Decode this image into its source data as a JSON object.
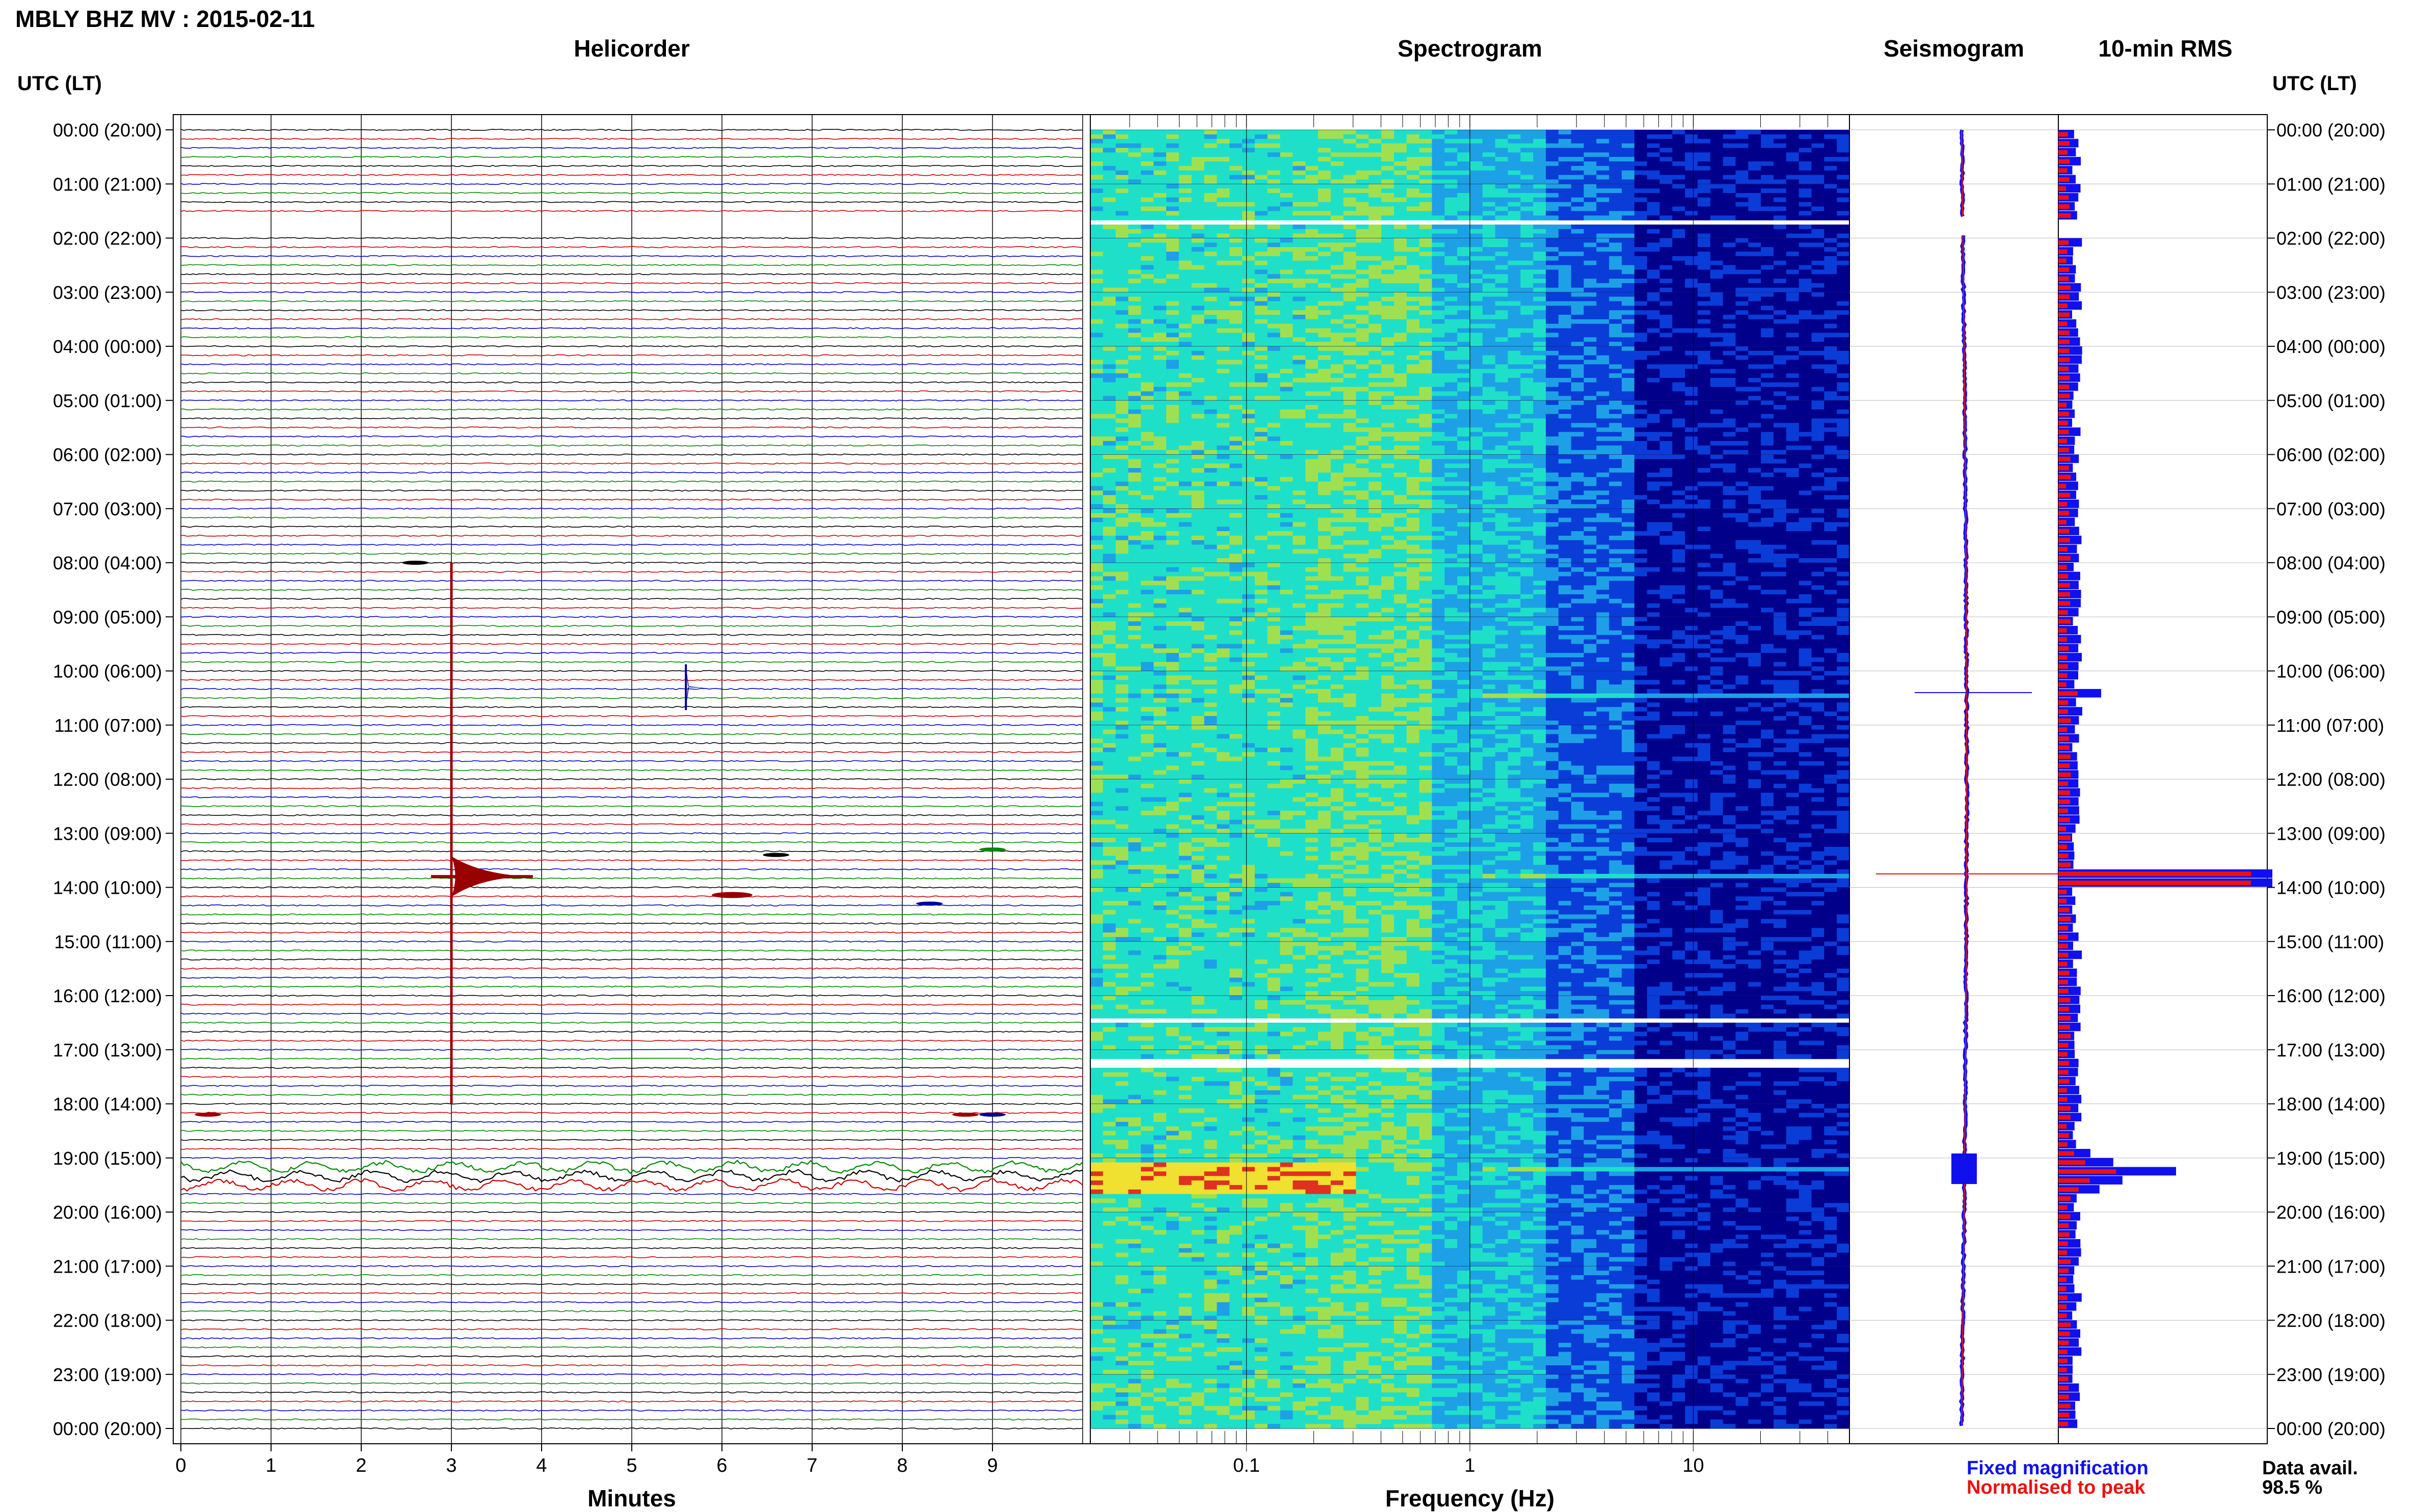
{
  "header": {
    "title": "MBLY BHZ MV : 2015-02-11"
  },
  "panels": {
    "helicorder_title": "Helicorder",
    "spectrogram_title": "Spectrogram",
    "seismogram_title": "Seismogram",
    "rms_title": "10-min RMS"
  },
  "axes": {
    "time_header_left": "UTC (LT)",
    "time_header_right": "UTC (LT)",
    "helicorder_xlabel": "Minutes",
    "spectrogram_xlabel": "Frequency (Hz)"
  },
  "legend": {
    "fixed": "Fixed magnification",
    "normalised": "Normalised to peak",
    "fixed_color": "#1010ee",
    "normalised_color": "#ee1010",
    "data_avail_label": "Data avail.",
    "data_avail_value": "98.5 %"
  },
  "chart_data": [
    {
      "type": "line",
      "name": "helicorder",
      "time_labels": [
        "00:00 (20:00)",
        "01:00 (21:00)",
        "02:00 (22:00)",
        "03:00 (23:00)",
        "04:00 (00:00)",
        "05:00 (01:00)",
        "06:00 (02:00)",
        "07:00 (03:00)",
        "08:00 (04:00)",
        "09:00 (05:00)",
        "10:00 (06:00)",
        "11:00 (07:00)",
        "12:00 (08:00)",
        "13:00 (09:00)",
        "14:00 (10:00)",
        "15:00 (11:00)",
        "16:00 (12:00)",
        "17:00 (13:00)",
        "18:00 (14:00)",
        "19:00 (15:00)",
        "20:00 (16:00)",
        "21:00 (17:00)",
        "22:00 (18:00)",
        "23:00 (19:00)",
        "00:00 (20:00)"
      ],
      "x_ticks": [
        0,
        1,
        2,
        3,
        4,
        5,
        6,
        7,
        8,
        9
      ],
      "xlim": [
        0,
        10
      ],
      "trace_colors": [
        "#000000",
        "#cc0000",
        "#0000cc",
        "#008800"
      ],
      "traces_per_hour": 6,
      "events": [
        {
          "hour": 13.8,
          "minute": 3.0,
          "color": "#990000",
          "amplitude": "large"
        },
        {
          "hour": 10.3,
          "minute": 5.6,
          "color": "#000099",
          "amplitude": "medium"
        },
        {
          "hour": 14.0,
          "minute": 6.0,
          "color": "#990000",
          "amplitude": "small"
        },
        {
          "hour": 19.2,
          "minute": 0.5,
          "color": "#004400",
          "amplitude": "noise"
        }
      ],
      "gaps": [
        {
          "hour_start": 1.65,
          "hour_end": 1.95
        },
        {
          "hour": 16.3,
          "minute_start": 4.5,
          "minute_end": 4.9
        },
        {
          "hour": 17.1,
          "minute_start": 4.8,
          "minute_end": 5.6
        }
      ]
    },
    {
      "type": "heatmap",
      "name": "spectrogram",
      "x_scale": "log",
      "x_ticks": [
        0.1,
        1,
        10
      ],
      "xlim": [
        0.02,
        50
      ],
      "colors": [
        "#00008b",
        "#0a3cd8",
        "#1ea0e6",
        "#1ee0c8",
        "#a0e050",
        "#f0e030",
        "#e03020"
      ],
      "gaps_hours": [
        1.65,
        16.4,
        17.2
      ],
      "events_hours": [
        10.4,
        13.75,
        19.2
      ]
    },
    {
      "type": "line",
      "name": "seismogram",
      "events_hours": [
        10.4,
        13.75,
        19.2
      ]
    },
    {
      "type": "bar",
      "name": "10-min RMS",
      "bins_per_hour": 6,
      "series": [
        {
          "name": "Fixed magnification",
          "color": "#1010ee"
        },
        {
          "name": "Normalised to peak",
          "color": "#ee1010"
        }
      ],
      "peaks": [
        {
          "hour": 13.75,
          "fixed": 1.0,
          "normalised": 1.0
        },
        {
          "hour": 19.2,
          "fixed": 0.55,
          "normalised": 0.3
        },
        {
          "hour": 10.4,
          "fixed": 0.2,
          "normalised": 0.1
        }
      ],
      "baseline_fixed": 0.08,
      "baseline_normalised": 0.05
    }
  ]
}
